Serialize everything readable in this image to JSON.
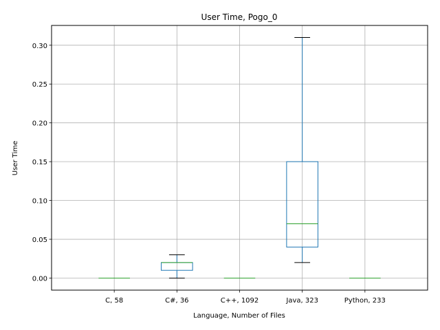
{
  "chart_data": {
    "type": "box",
    "title": "User Time, Pogo_0",
    "xlabel": "Language, Number of Files",
    "ylabel": "User Time",
    "categories": [
      "C, 58",
      "C#, 36",
      "C++, 1092",
      "Java, 323",
      "Python, 233"
    ],
    "boxes": [
      {
        "whisker_low": 0.0,
        "q1": 0.0,
        "median": 0.0,
        "q3": 0.0,
        "whisker_high": 0.0
      },
      {
        "whisker_low": 0.0,
        "q1": 0.01,
        "median": 0.02,
        "q3": 0.02,
        "whisker_high": 0.03
      },
      {
        "whisker_low": 0.0,
        "q1": 0.0,
        "median": 0.0,
        "q3": 0.0,
        "whisker_high": 0.0
      },
      {
        "whisker_low": 0.02,
        "q1": 0.04,
        "median": 0.07,
        "q3": 0.15,
        "whisker_high": 0.31
      },
      {
        "whisker_low": 0.0,
        "q1": 0.0,
        "median": 0.0,
        "q3": 0.0,
        "whisker_high": 0.0
      }
    ],
    "y_ticks": [
      "0.00",
      "0.05",
      "0.10",
      "0.15",
      "0.20",
      "0.25",
      "0.30"
    ],
    "ylim": [
      -0.0155,
      0.3255
    ],
    "grid": true,
    "colors": {
      "box": "#1f77b4",
      "median": "#2ca02c",
      "whisker_cap": "#000000",
      "grid": "#b0b0b0"
    }
  }
}
